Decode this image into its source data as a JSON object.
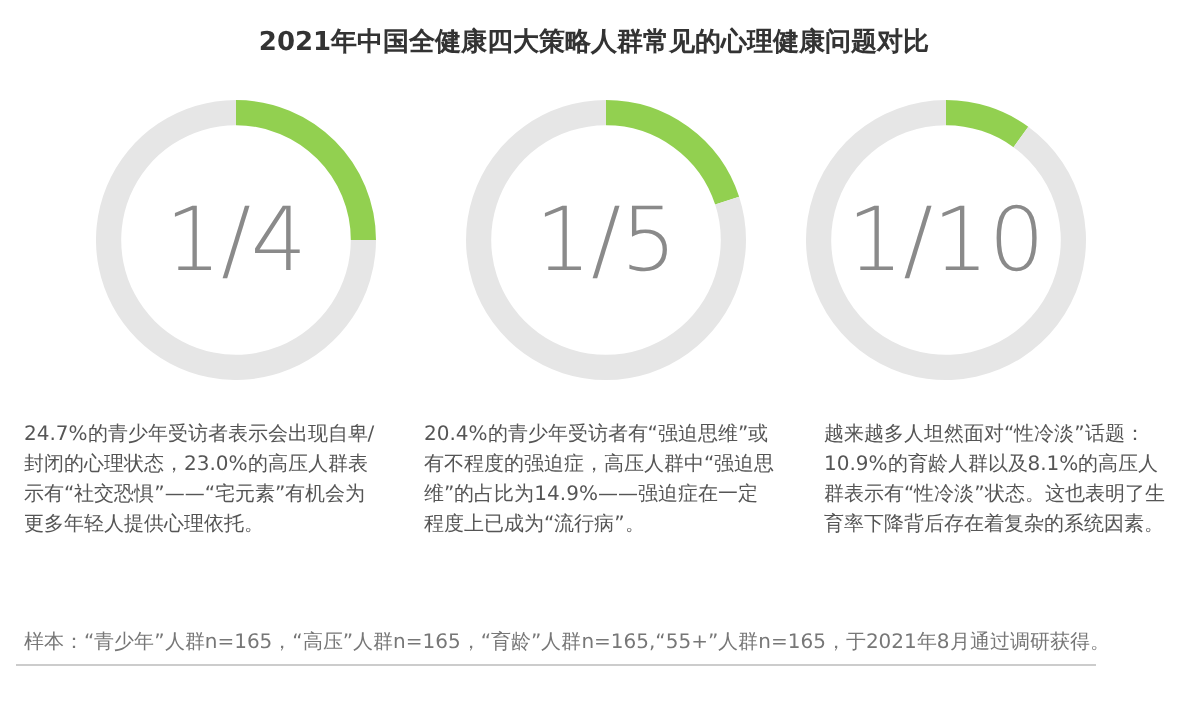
{
  "chart_data": [
    {
      "type": "donut",
      "title": "2021年中国全健康四大策略人群常见的心理健康问题对比",
      "categories": [
        null,
        null
      ],
      "values": [
        25,
        75
      ],
      "colors": [
        "#92d050",
        "#e6e6e6"
      ],
      "annotations": [
        "1/4",
        "24.7%的青少年受访者表示会出现自卑/封闭的心理状态，23.0%的高压人群表示有“社交恐惧”——“宅元素”有机会为更多年轻人提供心理依托。",
        "样本：“青少年”人群n=165，“高压”人群n=165，“育龄”人群n=165,“55+”人群n=165，于2021年8月通过调研获得。"
      ]
    },
    {
      "type": "donut",
      "categories": [
        null,
        null
      ],
      "values": [
        20,
        80
      ],
      "colors": [
        "#92d050",
        "#e6e6e6"
      ],
      "annotations": [
        "1/5",
        "20.4%的青少年受访者有“强迫思维”或有不程度的强迫症，高压人群中“强迫思维”的占比为14.9%——强迫症在一定程度上已成为“流行病”。"
      ]
    },
    {
      "type": "donut",
      "categories": [
        null,
        null
      ],
      "values": [
        10,
        90
      ],
      "colors": [
        "#92d050",
        "#e6e6e6"
      ],
      "annotations": [
        "1/10",
        "越来越多人坦然面对“性冷淡”话题：10.9%的育龄人群以及8.1%的高压人群表示有“性冷淡”状态。这也表明了生育率下降背后存在着复杂的系统因素。"
      ]
    }
  ]
}
